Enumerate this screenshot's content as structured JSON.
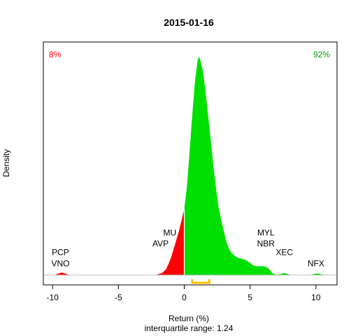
{
  "chart_data": {
    "type": "area",
    "title": "2015-01-16",
    "xlabel": "Return (%)",
    "ylabel": "Density",
    "subtitle": "interquartile range: 1.24",
    "xlim": [
      -10.7,
      11.6
    ],
    "ylim": [
      0,
      1.0
    ],
    "x_ticks": [
      -10,
      -5,
      0,
      5,
      10
    ],
    "x_tick_labels": [
      "-10",
      "-5",
      "0",
      "5",
      "10"
    ],
    "grid": false,
    "negative_share": "8%",
    "positive_share": "92%",
    "colors": {
      "negative": "#ff0000",
      "positive": "#00e000",
      "iqr": "#ffc000",
      "baseline": "#c0c0c0"
    },
    "iqr": [
      0.6,
      1.9
    ],
    "density": [
      [
        -9.9,
        0.0
      ],
      [
        -9.6,
        0.006
      ],
      [
        -9.3,
        0.012
      ],
      [
        -9.0,
        0.006
      ],
      [
        -8.7,
        0.0
      ],
      [
        -2.2,
        0.0
      ],
      [
        -2.0,
        0.004
      ],
      [
        -1.7,
        0.009
      ],
      [
        -1.4,
        0.025
      ],
      [
        -1.2,
        0.05
      ],
      [
        -1.0,
        0.08
      ],
      [
        -0.8,
        0.12
      ],
      [
        -0.6,
        0.16
      ],
      [
        -0.4,
        0.2
      ],
      [
        -0.2,
        0.25
      ],
      [
        0.0,
        0.3
      ],
      [
        0.2,
        0.4
      ],
      [
        0.4,
        0.56
      ],
      [
        0.6,
        0.72
      ],
      [
        0.8,
        0.87
      ],
      [
        1.0,
        0.97
      ],
      [
        1.1,
        0.99
      ],
      [
        1.2,
        0.98
      ],
      [
        1.4,
        0.93
      ],
      [
        1.6,
        0.84
      ],
      [
        1.8,
        0.73
      ],
      [
        2.0,
        0.62
      ],
      [
        2.2,
        0.5
      ],
      [
        2.4,
        0.4
      ],
      [
        2.6,
        0.31
      ],
      [
        2.8,
        0.25
      ],
      [
        3.0,
        0.2
      ],
      [
        3.2,
        0.15
      ],
      [
        3.4,
        0.12
      ],
      [
        3.6,
        0.1
      ],
      [
        3.8,
        0.09
      ],
      [
        4.0,
        0.08
      ],
      [
        4.3,
        0.075
      ],
      [
        4.6,
        0.07
      ],
      [
        4.9,
        0.06
      ],
      [
        5.2,
        0.045
      ],
      [
        5.5,
        0.04
      ],
      [
        5.8,
        0.04
      ],
      [
        6.1,
        0.04
      ],
      [
        6.4,
        0.03
      ],
      [
        6.7,
        0.008
      ],
      [
        7.0,
        0.002
      ],
      [
        7.3,
        0.004
      ],
      [
        7.6,
        0.01
      ],
      [
        7.9,
        0.004
      ],
      [
        8.2,
        0.0
      ],
      [
        9.5,
        0.0
      ],
      [
        9.8,
        0.004
      ],
      [
        10.1,
        0.008
      ],
      [
        10.4,
        0.004
      ],
      [
        10.7,
        0.0
      ]
    ],
    "annotations": [
      {
        "text": "PCP",
        "x": -9.4,
        "y": 0.09
      },
      {
        "text": "VNO",
        "x": -9.4,
        "y": 0.04
      },
      {
        "text": "MU",
        "x": -1.1,
        "y": 0.18
      },
      {
        "text": "AVP",
        "x": -1.8,
        "y": 0.13
      },
      {
        "text": "MYL",
        "x": 6.2,
        "y": 0.18
      },
      {
        "text": "NBR",
        "x": 6.2,
        "y": 0.13
      },
      {
        "text": "XEC",
        "x": 7.6,
        "y": 0.09
      },
      {
        "text": "NFX",
        "x": 10.0,
        "y": 0.04
      }
    ]
  }
}
